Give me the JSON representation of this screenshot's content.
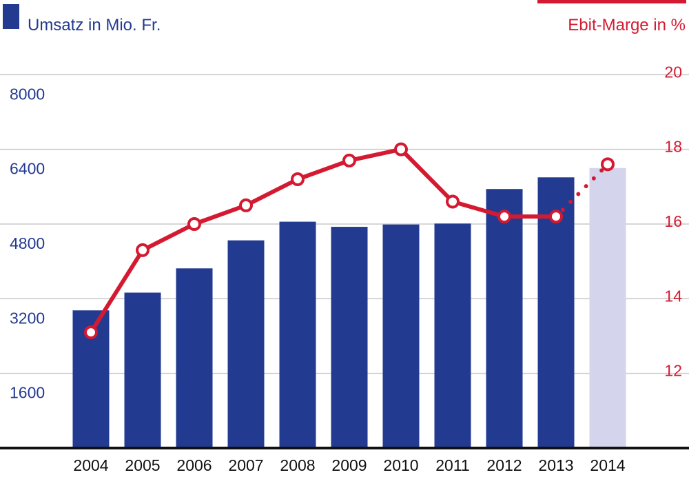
{
  "colors": {
    "bar": "#233a91",
    "bar_estimate": "#d4d4ec",
    "line": "#d41a31",
    "left_axis": "#233a91",
    "right_axis": "#d41a31",
    "grid": "#c8c8c8",
    "baseline": "#111111"
  },
  "legend": {
    "bars_label": "Umsatz in Mio. Fr.",
    "line_label": "Ebit-Marge in %"
  },
  "chart_data": {
    "type": "bar",
    "categories": [
      "2004",
      "2005",
      "2006",
      "2007",
      "2008",
      "2009",
      "2010",
      "2011",
      "2012",
      "2013",
      "2014"
    ],
    "series": [
      {
        "name": "Umsatz in Mio. Fr.",
        "type": "bar",
        "axis": "left",
        "values": [
          2950,
          3330,
          3850,
          4450,
          4850,
          4740,
          4790,
          4810,
          5550,
          5800,
          6000
        ],
        "estimate_from_index": 10
      },
      {
        "name": "Ebit-Marge in %",
        "type": "line",
        "axis": "right",
        "values": [
          13.1,
          15.3,
          16.0,
          16.5,
          17.2,
          17.7,
          18.0,
          16.6,
          16.2,
          16.2,
          17.6
        ],
        "estimate_from_index": 10
      }
    ],
    "y_left": {
      "lim": [
        0,
        9600
      ],
      "ticks": [
        1600,
        3200,
        4800,
        6400,
        8000
      ]
    },
    "y_right": {
      "lim": [
        10,
        22
      ],
      "ticks": [
        12,
        14,
        16,
        18,
        20
      ]
    },
    "grid": true,
    "legend_position": "top"
  }
}
